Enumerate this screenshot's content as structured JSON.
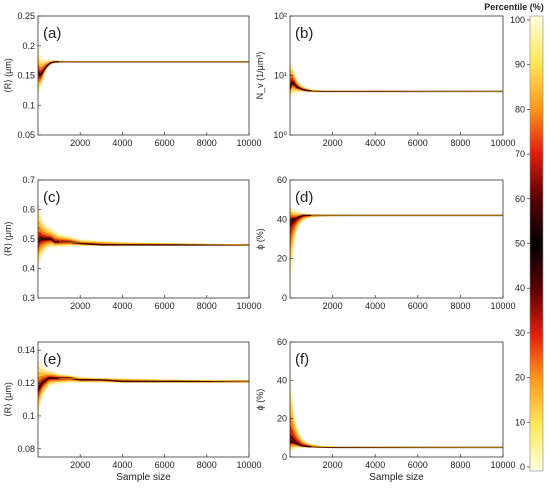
{
  "figure": {
    "colorbar_title": "Percentile (%)",
    "colorbar_ticks": [
      "100",
      "90",
      "80",
      "70",
      "60",
      "50",
      "40",
      "30",
      "20",
      "10",
      "0"
    ],
    "colorbar_scale": [
      "#fffde0",
      "#ffe95a",
      "#ff9a1e",
      "#e0200c",
      "#5a0000",
      "#000000",
      "#5a0000",
      "#e0200c",
      "#ff9a1e",
      "#ffe95a",
      "#fffde0"
    ],
    "band_color": "#f2a100",
    "ridge_color": "#3a0000",
    "mean_color": "#e8b000"
  },
  "chart_data": [
    {
      "panel": "(a)",
      "type": "area",
      "ylabel": "⟨R⟩ (μm)",
      "xlabel": "",
      "xlim": [
        0,
        10000
      ],
      "ylim": [
        0.05,
        0.25
      ],
      "xticks": [
        "2000",
        "4000",
        "6000",
        "8000",
        "10000"
      ],
      "xtick_values": [
        2000,
        4000,
        6000,
        8000,
        10000
      ],
      "yticks": [
        "0.05",
        "0.1",
        "0.15",
        "0.2",
        "0.25"
      ],
      "ytick_values": [
        0.05,
        0.1,
        0.15,
        0.2,
        0.25
      ],
      "log_y": false,
      "x": [
        0,
        100,
        200,
        300,
        400,
        500,
        600,
        800,
        1000,
        1500,
        2000,
        3000,
        4000,
        6000,
        8000,
        10000
      ],
      "median": [
        0.155,
        0.15,
        0.155,
        0.16,
        0.165,
        0.168,
        0.171,
        0.173,
        0.173,
        0.173,
        0.173,
        0.173,
        0.173,
        0.173,
        0.173,
        0.173
      ],
      "p5": [
        0.115,
        0.125,
        0.135,
        0.148,
        0.158,
        0.164,
        0.168,
        0.17,
        0.171,
        0.172,
        0.172,
        0.172,
        0.172,
        0.172,
        0.172,
        0.172
      ],
      "p95": [
        0.195,
        0.185,
        0.18,
        0.178,
        0.177,
        0.177,
        0.177,
        0.176,
        0.175,
        0.175,
        0.174,
        0.174,
        0.174,
        0.174,
        0.174,
        0.174
      ]
    },
    {
      "panel": "(b)",
      "type": "area",
      "ylabel": "N_v (1/μm³)",
      "xlabel": "",
      "xlim": [
        0,
        10000
      ],
      "ylim": [
        1,
        100
      ],
      "xticks": [
        "2000",
        "4000",
        "6000",
        "8000",
        "10000"
      ],
      "xtick_values": [
        2000,
        4000,
        6000,
        8000,
        10000
      ],
      "yticks": [
        "10⁰",
        "10¹",
        "10²"
      ],
      "ytick_values": [
        1,
        10,
        100
      ],
      "log_y": true,
      "x": [
        0,
        100,
        200,
        300,
        400,
        500,
        600,
        800,
        1000,
        1500,
        2000,
        3000,
        4000,
        6000,
        8000,
        10000
      ],
      "median": [
        6.0,
        7.5,
        7.0,
        6.5,
        6.2,
        6.0,
        5.8,
        5.6,
        5.5,
        5.4,
        5.4,
        5.4,
        5.4,
        5.4,
        5.4,
        5.4
      ],
      "p5": [
        4.0,
        4.5,
        4.8,
        5.0,
        5.1,
        5.2,
        5.2,
        5.2,
        5.2,
        5.25,
        5.3,
        5.3,
        5.3,
        5.3,
        5.3,
        5.3
      ],
      "p95": [
        18,
        15,
        12,
        9.5,
        8.0,
        7.2,
        6.8,
        6.2,
        5.9,
        5.7,
        5.6,
        5.5,
        5.5,
        5.5,
        5.5,
        5.5
      ]
    },
    {
      "panel": "(c)",
      "type": "area",
      "ylabel": "⟨R⟩ (μm)",
      "xlabel": "",
      "xlim": [
        0,
        10000
      ],
      "ylim": [
        0.3,
        0.7
      ],
      "xticks": [
        "2000",
        "4000",
        "6000",
        "8000",
        "10000"
      ],
      "xtick_values": [
        2000,
        4000,
        6000,
        8000,
        10000
      ],
      "yticks": [
        "0.3",
        "0.4",
        "0.5",
        "0.6",
        "0.7"
      ],
      "ytick_values": [
        0.3,
        0.4,
        0.5,
        0.6,
        0.7
      ],
      "log_y": false,
      "x": [
        0,
        100,
        200,
        300,
        400,
        500,
        600,
        800,
        1000,
        1500,
        2000,
        3000,
        4000,
        6000,
        8000,
        10000
      ],
      "median": [
        0.49,
        0.5,
        0.5,
        0.5,
        0.5,
        0.5,
        0.5,
        0.49,
        0.49,
        0.49,
        0.485,
        0.48,
        0.48,
        0.48,
        0.48,
        0.48
      ],
      "p5": [
        0.39,
        0.42,
        0.44,
        0.45,
        0.46,
        0.465,
        0.47,
        0.47,
        0.472,
        0.474,
        0.475,
        0.476,
        0.477,
        0.477,
        0.477,
        0.477
      ],
      "p95": [
        0.62,
        0.6,
        0.57,
        0.56,
        0.55,
        0.545,
        0.54,
        0.53,
        0.52,
        0.51,
        0.5,
        0.495,
        0.49,
        0.487,
        0.485,
        0.484
      ]
    },
    {
      "panel": "(d)",
      "type": "area",
      "ylabel": "ϕ (%)",
      "xlabel": "",
      "xlim": [
        0,
        10000
      ],
      "ylim": [
        0,
        60
      ],
      "xticks": [
        "2000",
        "4000",
        "6000",
        "8000",
        "10000"
      ],
      "xtick_values": [
        2000,
        4000,
        6000,
        8000,
        10000
      ],
      "yticks": [
        "0",
        "20",
        "40",
        "60"
      ],
      "ytick_values": [
        0,
        20,
        40,
        60
      ],
      "log_y": false,
      "x": [
        0,
        100,
        200,
        300,
        400,
        500,
        600,
        800,
        1000,
        1500,
        2000,
        3000,
        4000,
        6000,
        8000,
        10000
      ],
      "median": [
        39,
        40,
        40,
        40.5,
        41,
        41.5,
        42,
        42,
        42,
        42,
        42,
        42,
        42,
        42,
        42,
        42
      ],
      "p5": [
        2,
        15,
        26,
        32,
        35,
        37,
        38.5,
        40,
        40.8,
        41.3,
        41.5,
        41.7,
        41.8,
        41.8,
        41.8,
        41.8
      ],
      "p95": [
        47,
        46,
        45,
        44.5,
        44,
        43.5,
        43.2,
        43,
        42.8,
        42.5,
        42.4,
        42.3,
        42.2,
        42.2,
        42.2,
        42.2
      ]
    },
    {
      "panel": "(e)",
      "type": "area",
      "ylabel": "⟨R⟩ (μm)",
      "xlabel": "Sample size",
      "xlim": [
        0,
        10000
      ],
      "ylim": [
        0.075,
        0.145
      ],
      "xticks": [
        "2000",
        "4000",
        "6000",
        "8000",
        "10000"
      ],
      "xtick_values": [
        2000,
        4000,
        6000,
        8000,
        10000
      ],
      "yticks": [
        "0.08",
        "0.1",
        "0.12",
        "0.14"
      ],
      "ytick_values": [
        0.08,
        0.1,
        0.12,
        0.14
      ],
      "log_y": false,
      "x": [
        0,
        100,
        200,
        300,
        400,
        500,
        600,
        800,
        1000,
        1500,
        2000,
        3000,
        4000,
        6000,
        8000,
        10000
      ],
      "median": [
        0.116,
        0.118,
        0.12,
        0.121,
        0.122,
        0.123,
        0.123,
        0.123,
        0.123,
        0.123,
        0.122,
        0.122,
        0.121,
        0.121,
        0.121,
        0.121
      ],
      "p5": [
        0.098,
        0.105,
        0.11,
        0.113,
        0.115,
        0.117,
        0.118,
        0.119,
        0.119,
        0.12,
        0.12,
        0.12,
        0.12,
        0.12,
        0.12,
        0.12
      ],
      "p95": [
        0.134,
        0.133,
        0.131,
        0.13,
        0.129,
        0.128,
        0.128,
        0.127,
        0.126,
        0.125,
        0.124,
        0.123,
        0.123,
        0.122,
        0.122,
        0.122
      ]
    },
    {
      "panel": "(f)",
      "type": "area",
      "ylabel": "ϕ (%)",
      "xlabel": "Sample size",
      "xlim": [
        0,
        10000
      ],
      "ylim": [
        0,
        60
      ],
      "xticks": [
        "2000",
        "4000",
        "6000",
        "8000",
        "10000"
      ],
      "xtick_values": [
        2000,
        4000,
        6000,
        8000,
        10000
      ],
      "yticks": [
        "0",
        "20",
        "40",
        "60"
      ],
      "ytick_values": [
        0,
        20,
        40,
        60
      ],
      "log_y": false,
      "x": [
        0,
        100,
        200,
        300,
        400,
        500,
        600,
        800,
        1000,
        1500,
        2000,
        3000,
        4000,
        6000,
        8000,
        10000
      ],
      "median": [
        8,
        8,
        7.5,
        7,
        6.5,
        6,
        5.8,
        5.5,
        5.3,
        5.1,
        5,
        5,
        5,
        5,
        5,
        5
      ],
      "p5": [
        2,
        3,
        3.8,
        4.2,
        4.5,
        4.6,
        4.7,
        4.8,
        4.85,
        4.9,
        4.9,
        4.9,
        4.9,
        4.9,
        4.9,
        4.9
      ],
      "p95": [
        45,
        35,
        25,
        19,
        15,
        12,
        10,
        8,
        7,
        6,
        5.6,
        5.3,
        5.2,
        5.1,
        5.1,
        5.1
      ]
    }
  ]
}
